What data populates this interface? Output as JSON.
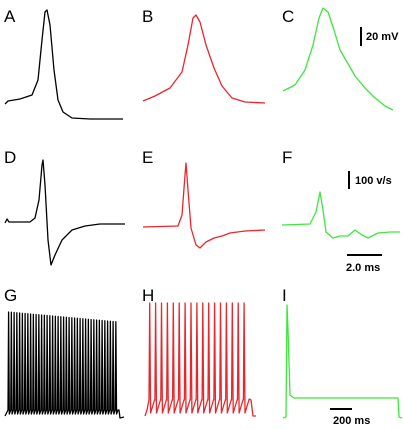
{
  "panel_labels": [
    "A",
    "B",
    "C",
    "D",
    "E",
    "F",
    "G",
    "H",
    "I"
  ],
  "scale_bars": [
    "20 mV",
    "100 v/s",
    "2.0 ms",
    "200 ms"
  ]
}
